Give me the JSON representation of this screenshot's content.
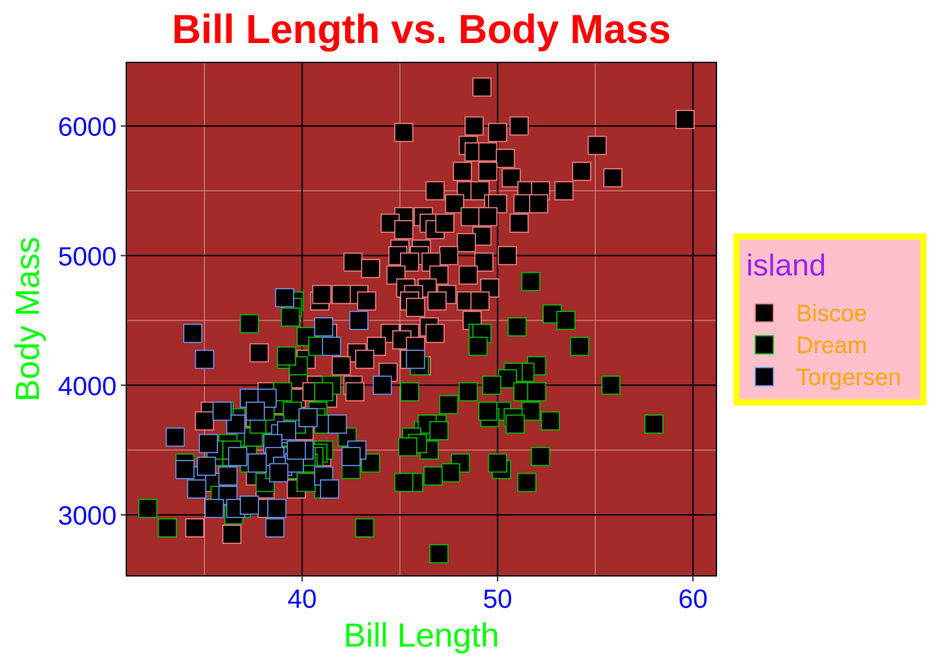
{
  "chart_data": {
    "type": "scatter",
    "title": "Bill Length vs. Body Mass",
    "xlabel": "Bill Length",
    "ylabel": "Body Mass",
    "xlim": [
      31,
      61.2
    ],
    "ylim": [
      2530,
      6490
    ],
    "x_ticks": [
      40,
      50,
      60
    ],
    "y_ticks": [
      3000,
      4000,
      5000,
      6000
    ],
    "x_minor": [
      35,
      45,
      55
    ],
    "y_minor": [
      3500,
      4500,
      5500
    ],
    "grid": true,
    "legend_title": "island",
    "legend_position": "right",
    "colors": {
      "title": "#ff0000",
      "axis_title": "#00ff00",
      "tick_label": "#0000ff",
      "panel_background": "#a52a2a",
      "major_grid": "#000000",
      "minor_grid": "#d8a0a0",
      "marker_fill": "#000000",
      "legend_background": "#ffc0cb",
      "legend_border": "#ffff00",
      "legend_title": "#a020f0",
      "legend_text": "#ffa500"
    },
    "series": [
      {
        "name": "Biscoe",
        "edge_color": "#f08080",
        "points": [
          [
            49.2,
            6300
          ],
          [
            59.6,
            6050
          ],
          [
            45.2,
            5950
          ],
          [
            48.8,
            6000
          ],
          [
            50.0,
            5950
          ],
          [
            51.1,
            6000
          ],
          [
            55.1,
            5850
          ],
          [
            48.5,
            5850
          ],
          [
            48.8,
            5800
          ],
          [
            49.5,
            5800
          ],
          [
            50.4,
            5750
          ],
          [
            48.2,
            5650
          ],
          [
            49.5,
            5650
          ],
          [
            50.7,
            5600
          ],
          [
            54.3,
            5650
          ],
          [
            55.9,
            5600
          ],
          [
            46.8,
            5500
          ],
          [
            48.4,
            5500
          ],
          [
            49.1,
            5500
          ],
          [
            51.5,
            5500
          ],
          [
            52.2,
            5500
          ],
          [
            53.4,
            5500
          ],
          [
            47.8,
            5400
          ],
          [
            49.8,
            5400
          ],
          [
            50.0,
            5400
          ],
          [
            51.3,
            5400
          ],
          [
            52.1,
            5400
          ],
          [
            45.2,
            5300
          ],
          [
            46.2,
            5300
          ],
          [
            48.6,
            5300
          ],
          [
            49.5,
            5300
          ],
          [
            44.5,
            5250
          ],
          [
            46.5,
            5250
          ],
          [
            51.1,
            5250
          ],
          [
            45.2,
            5200
          ],
          [
            46.8,
            5200
          ],
          [
            47.3,
            5250
          ],
          [
            49.2,
            5150
          ],
          [
            48.4,
            5100
          ],
          [
            45.0,
            5050
          ],
          [
            46.1,
            5050
          ],
          [
            44.9,
            5000
          ],
          [
            46.0,
            5000
          ],
          [
            47.5,
            5000
          ],
          [
            50.5,
            5000
          ],
          [
            42.6,
            4950
          ],
          [
            45.5,
            4950
          ],
          [
            46.6,
            4950
          ],
          [
            49.3,
            4950
          ],
          [
            43.5,
            4900
          ],
          [
            44.8,
            4850
          ],
          [
            47.0,
            4850
          ],
          [
            48.5,
            4850
          ],
          [
            46.4,
            4750
          ],
          [
            49.6,
            4750
          ],
          [
            45.3,
            4750
          ],
          [
            42.9,
            4700
          ],
          [
            45.7,
            4700
          ],
          [
            47.4,
            4700
          ],
          [
            40.9,
            4650
          ],
          [
            43.3,
            4650
          ],
          [
            45.5,
            4650
          ],
          [
            46.9,
            4650
          ],
          [
            48.4,
            4650
          ],
          [
            49.1,
            4650
          ],
          [
            45.8,
            4600
          ],
          [
            48.7,
            4500
          ],
          [
            46.5,
            4450
          ],
          [
            44.5,
            4400
          ],
          [
            45.5,
            4400
          ],
          [
            46.8,
            4400
          ],
          [
            45.1,
            4350
          ],
          [
            43.8,
            4300
          ],
          [
            45.8,
            4300
          ],
          [
            42.8,
            4250
          ],
          [
            45.5,
            4200
          ],
          [
            46.1,
            4150
          ],
          [
            42.0,
            4150
          ],
          [
            44.4,
            4100
          ],
          [
            42.6,
            4000
          ],
          [
            42.7,
            3950
          ],
          [
            43.2,
            4200
          ],
          [
            41.0,
            4700
          ],
          [
            42.0,
            4700
          ],
          [
            41.3,
            4400
          ],
          [
            37.8,
            4250
          ],
          [
            40.6,
            4000
          ],
          [
            39.8,
            4050
          ],
          [
            40.2,
            4200
          ],
          [
            38.2,
            3950
          ],
          [
            35.3,
            3800
          ],
          [
            37.6,
            3750
          ],
          [
            37.9,
            3850
          ],
          [
            38.8,
            3850
          ],
          [
            39.7,
            3900
          ],
          [
            40.5,
            3950
          ],
          [
            35.0,
            3725
          ],
          [
            37.7,
            3600
          ],
          [
            39.6,
            3500
          ],
          [
            41.0,
            3450
          ],
          [
            36.5,
            3450
          ],
          [
            38.1,
            3200
          ],
          [
            39.7,
            3200
          ],
          [
            40.6,
            3500
          ],
          [
            37.6,
            3300
          ],
          [
            38.2,
            3050
          ],
          [
            34.5,
            2900
          ],
          [
            36.4,
            2850
          ],
          [
            41.3,
            3900
          ],
          [
            40.1,
            3650
          ],
          [
            35.5,
            3250
          ]
        ]
      },
      {
        "name": "Dream",
        "edge_color": "#00c000",
        "points": [
          [
            51.7,
            4800
          ],
          [
            37.3,
            4475
          ],
          [
            39.6,
            4650
          ],
          [
            39.5,
            4600
          ],
          [
            39.4,
            4525
          ],
          [
            40.2,
            4375
          ],
          [
            39.2,
            4200
          ],
          [
            40.8,
            4300
          ],
          [
            39.8,
            4150
          ],
          [
            52.8,
            4550
          ],
          [
            53.5,
            4500
          ],
          [
            54.2,
            4300
          ],
          [
            51.0,
            4450
          ],
          [
            49.0,
            4400
          ],
          [
            49.2,
            4400
          ],
          [
            49.0,
            4300
          ],
          [
            52.0,
            4150
          ],
          [
            51.4,
            4100
          ],
          [
            50.8,
            4100
          ],
          [
            50.5,
            4050
          ],
          [
            49.7,
            4000
          ],
          [
            46.0,
            4150
          ],
          [
            45.5,
            3950
          ],
          [
            48.5,
            3950
          ],
          [
            50.2,
            3800
          ],
          [
            51.3,
            3950
          ],
          [
            52.0,
            3950
          ],
          [
            55.8,
            4000
          ],
          [
            58.0,
            3700
          ],
          [
            52.7,
            3725
          ],
          [
            51.7,
            3800
          ],
          [
            50.8,
            3750
          ],
          [
            49.6,
            3750
          ],
          [
            50.9,
            3700
          ],
          [
            49.5,
            3800
          ],
          [
            47.5,
            3850
          ],
          [
            46.9,
            3700
          ],
          [
            46.2,
            3650
          ],
          [
            46.4,
            3700
          ],
          [
            45.6,
            3600
          ],
          [
            46.5,
            3500
          ],
          [
            45.9,
            3550
          ],
          [
            45.4,
            3525
          ],
          [
            47.0,
            3650
          ],
          [
            52.2,
            3450
          ],
          [
            50.2,
            3350
          ],
          [
            50.0,
            3400
          ],
          [
            48.1,
            3400
          ],
          [
            47.6,
            3325
          ],
          [
            46.7,
            3300
          ],
          [
            45.7,
            3250
          ],
          [
            45.2,
            3250
          ],
          [
            51.5,
            3250
          ],
          [
            47.0,
            2700
          ],
          [
            43.2,
            2900
          ],
          [
            43.5,
            3400
          ],
          [
            42.5,
            3350
          ],
          [
            42.3,
            3600
          ],
          [
            41.1,
            3500
          ],
          [
            40.8,
            3475
          ],
          [
            40.6,
            3450
          ],
          [
            39.0,
            3425
          ],
          [
            37.2,
            3500
          ],
          [
            38.8,
            3600
          ],
          [
            39.2,
            3450
          ],
          [
            41.5,
            4000
          ],
          [
            40.3,
            3400
          ],
          [
            40.8,
            3800
          ],
          [
            41.1,
            3950
          ],
          [
            40.7,
            3750
          ],
          [
            39.7,
            3700
          ],
          [
            36.0,
            3500
          ],
          [
            35.7,
            3450
          ],
          [
            36.4,
            3450
          ],
          [
            37.0,
            3600
          ],
          [
            37.5,
            3600
          ],
          [
            36.6,
            3750
          ],
          [
            37.8,
            3700
          ],
          [
            36.2,
            3550
          ],
          [
            35.6,
            3500
          ],
          [
            38.1,
            3250
          ],
          [
            38.6,
            3350
          ],
          [
            34.0,
            3400
          ],
          [
            35.8,
            3150
          ],
          [
            36.9,
            3050
          ],
          [
            36.5,
            3000
          ],
          [
            33.1,
            2900
          ],
          [
            32.1,
            3050
          ],
          [
            36.0,
            3800
          ],
          [
            36.4,
            3500
          ],
          [
            39.5,
            3800
          ],
          [
            39.0,
            3950
          ],
          [
            39.2,
            4225
          ],
          [
            41.1,
            3700
          ],
          [
            40.2,
            3450
          ],
          [
            38.6,
            3700
          ],
          [
            38.1,
            3800
          ],
          [
            37.3,
            3400
          ],
          [
            41.1,
            3200
          ],
          [
            39.6,
            3350
          ],
          [
            40.2,
            3250
          ]
        ]
      },
      {
        "name": "Torgersen",
        "edge_color": "#6495ed",
        "points": [
          [
            34.4,
            4400
          ],
          [
            35.0,
            4200
          ],
          [
            39.1,
            4675
          ],
          [
            41.1,
            4450
          ],
          [
            41.5,
            4300
          ],
          [
            42.9,
            4500
          ],
          [
            44.1,
            4000
          ],
          [
            37.3,
            3900
          ],
          [
            38.2,
            3900
          ],
          [
            40.3,
            3750
          ],
          [
            37.6,
            3800
          ],
          [
            35.2,
            3550
          ],
          [
            33.5,
            3600
          ],
          [
            36.6,
            3700
          ],
          [
            38.9,
            3625
          ],
          [
            39.2,
            3650
          ],
          [
            40.1,
            3500
          ],
          [
            41.8,
            3700
          ],
          [
            42.8,
            3500
          ],
          [
            34.6,
            3300
          ],
          [
            36.7,
            3450
          ],
          [
            38.5,
            3550
          ],
          [
            38.6,
            3450
          ],
          [
            39.0,
            3375
          ],
          [
            36.2,
            3300
          ],
          [
            35.1,
            3375
          ],
          [
            34.0,
            3350
          ],
          [
            37.7,
            3400
          ],
          [
            39.6,
            3400
          ],
          [
            41.1,
            3300
          ],
          [
            42.5,
            3450
          ],
          [
            34.6,
            3200
          ],
          [
            36.2,
            3150
          ],
          [
            36.6,
            3050
          ],
          [
            35.5,
            3050
          ],
          [
            38.7,
            3050
          ],
          [
            38.6,
            2900
          ],
          [
            37.3,
            3075
          ],
          [
            41.4,
            3200
          ],
          [
            38.8,
            3325
          ],
          [
            39.7,
            3500
          ],
          [
            35.9,
            3800
          ],
          [
            45.8,
            4200
          ]
        ]
      }
    ]
  }
}
